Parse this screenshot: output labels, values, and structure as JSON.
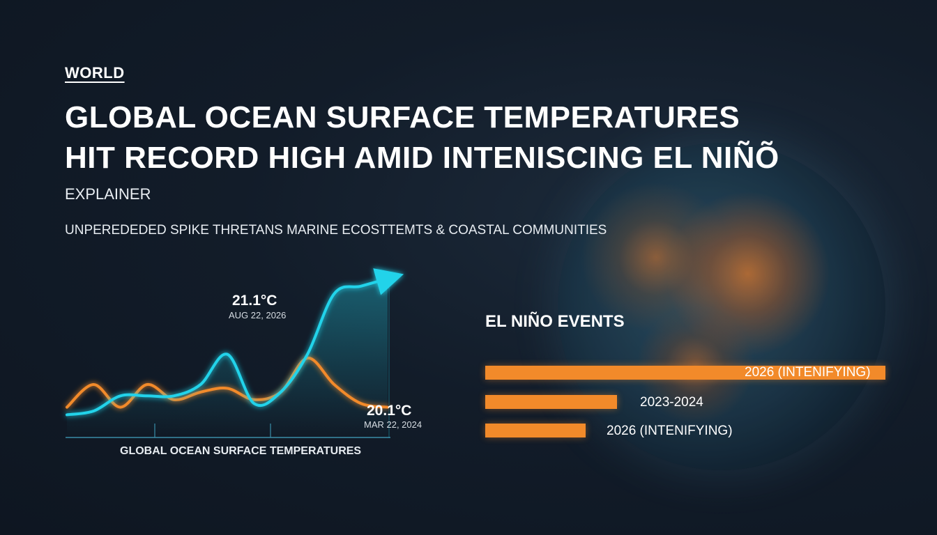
{
  "header": {
    "section_tag": "WORLD",
    "headline_line1": "GLOBAL OCEAN SURFACE TEMPERATURES",
    "headline_line2": "HIT RECORD HIGH AMID INTENISCING EL NIÑÕ",
    "kicker": "EXPLAINER",
    "subheadline": "UNPEREDEDED SPIKE THRETANS MARINE ECOSTTEMTS & COASTAL COMMUNITIES"
  },
  "colors": {
    "accent_cyan": "#22d3ea",
    "accent_orange": "#f28a2a",
    "background": "#121c29"
  },
  "chart_data": [
    {
      "type": "line",
      "title": "",
      "xlabel": "GLOBAL OCEAN SURFACE TEMPERATURES",
      "ylabel": "",
      "x": [
        0,
        1,
        2,
        3,
        4,
        5,
        6,
        7,
        8,
        9,
        10,
        11,
        12
      ],
      "series": [
        {
          "color": "#22d3ea",
          "values": [
            20.2,
            20.25,
            20.45,
            20.45,
            20.45,
            20.6,
            21.0,
            20.35,
            20.5,
            21.0,
            21.8,
            21.9,
            22.0
          ]
        },
        {
          "color": "#f28a2a",
          "values": [
            20.3,
            20.6,
            20.3,
            20.6,
            20.4,
            20.5,
            20.55,
            20.4,
            20.5,
            20.95,
            20.6,
            20.35,
            20.3
          ]
        }
      ],
      "annotations": [
        {
          "value": "21.1°C",
          "date": "AUG 22, 2026"
        },
        {
          "value": "20.1°C",
          "date": "MAR 22, 2024"
        }
      ],
      "grid": false
    },
    {
      "type": "bar",
      "orientation": "horizontal",
      "title": "EL NIÑO EVENTS",
      "categories": [
        "2026 (INTENIFYING)",
        "2023-2024",
        "2026 (INTENIFYING)"
      ],
      "values": [
        100,
        33,
        25
      ],
      "color": "#f28a2a"
    }
  ]
}
